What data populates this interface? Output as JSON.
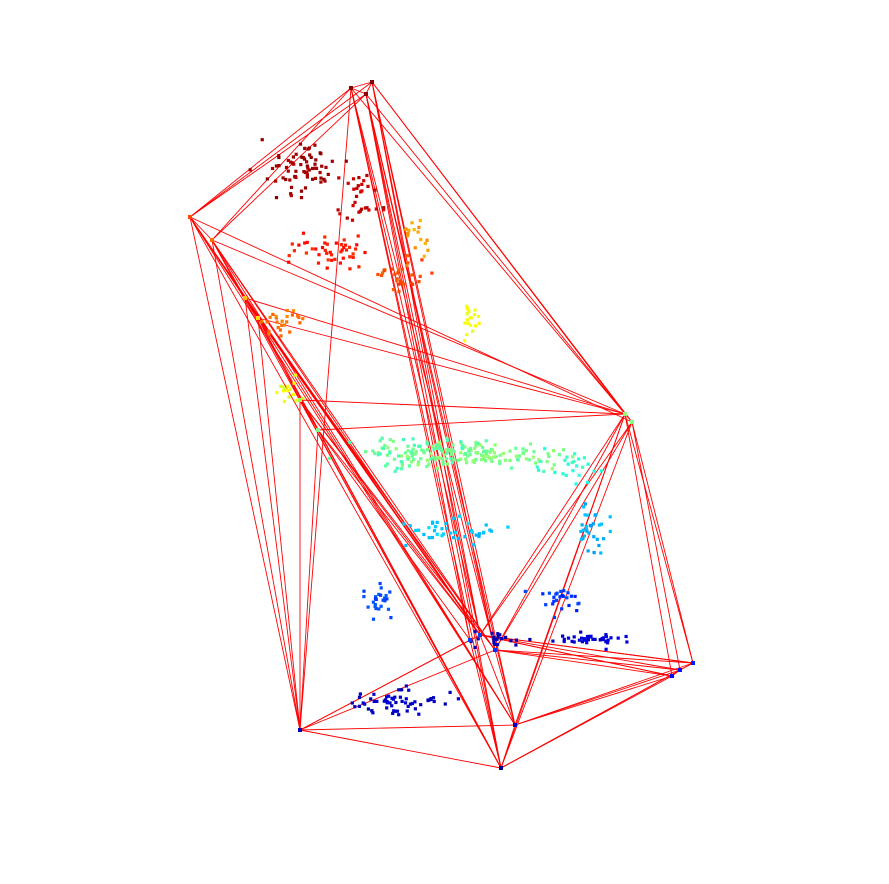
{
  "figure": {
    "background_color": "#ffffff",
    "edge_color": "#ff0000",
    "colormap": "jet",
    "colormap_stops": [
      "#00008f",
      "#0000ff",
      "#0080ff",
      "#00ffff",
      "#80ff80",
      "#ffff00",
      "#ff8000",
      "#ff0000",
      "#800000"
    ]
  }
}
